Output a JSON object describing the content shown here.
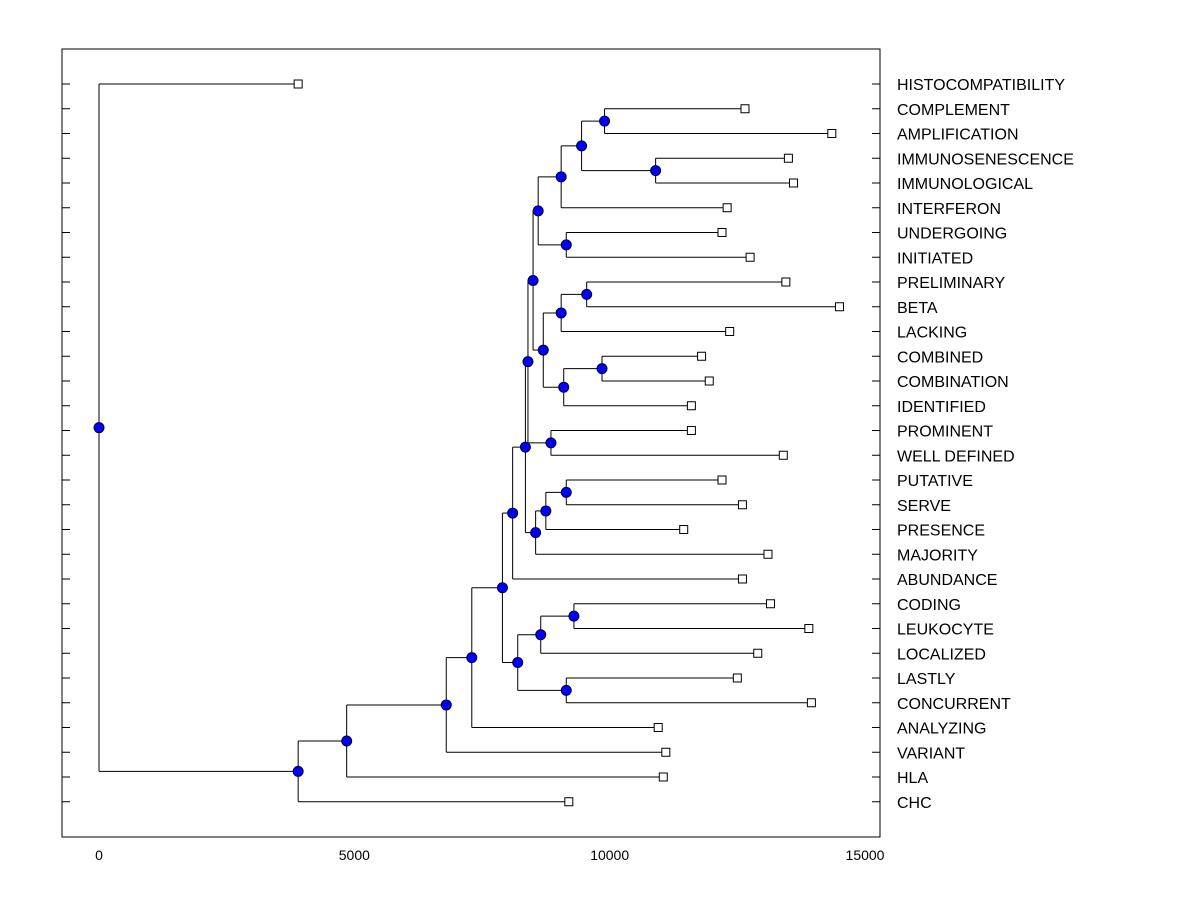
{
  "chart_data": {
    "type": "dendrogram",
    "title": "",
    "xlabel": "",
    "ylabel": "",
    "xlim": [
      -700,
      15000
    ],
    "xticks": [
      0,
      5000,
      10000,
      15000
    ],
    "tick_labels": [
      "0",
      "5000",
      "10000",
      "15000"
    ],
    "leaves": [
      {
        "name": "HISTOCOMPATIBILITY",
        "x": 3900
      },
      {
        "name": "COMPLEMENT",
        "x": 12650
      },
      {
        "name": "AMPLIFICATION",
        "x": 14350
      },
      {
        "name": "IMMUNOSENESCENCE",
        "x": 13500
      },
      {
        "name": "IMMUNOLOGICAL",
        "x": 13600
      },
      {
        "name": "INTERFERON",
        "x": 12300
      },
      {
        "name": "UNDERGOING",
        "x": 12200
      },
      {
        "name": "INITIATED",
        "x": 12750
      },
      {
        "name": "PRELIMINARY",
        "x": 13450
      },
      {
        "name": "BETA",
        "x": 14500
      },
      {
        "name": "LACKING",
        "x": 12350
      },
      {
        "name": "COMBINED",
        "x": 11800
      },
      {
        "name": "COMBINATION",
        "x": 11950
      },
      {
        "name": "IDENTIFIED",
        "x": 11600
      },
      {
        "name": "PROMINENT",
        "x": 11600
      },
      {
        "name": "WELL DEFINED",
        "x": 13400
      },
      {
        "name": "PUTATIVE",
        "x": 12200
      },
      {
        "name": "SERVE",
        "x": 12600
      },
      {
        "name": "PRESENCE",
        "x": 11450
      },
      {
        "name": "MAJORITY",
        "x": 13100
      },
      {
        "name": "ABUNDANCE",
        "x": 12600
      },
      {
        "name": "CODING",
        "x": 13150
      },
      {
        "name": "LEUKOCYTE",
        "x": 13900
      },
      {
        "name": "LOCALIZED",
        "x": 12900
      },
      {
        "name": "LASTLY",
        "x": 12500
      },
      {
        "name": "CONCURRENT",
        "x": 13950
      },
      {
        "name": "ANALYZING",
        "x": 10950
      },
      {
        "name": "VARIANT",
        "x": 11100
      },
      {
        "name": "HLA",
        "x": 11050
      },
      {
        "name": "CHC",
        "x": 9200
      }
    ],
    "nodes": [
      {
        "id": "n1",
        "x": 9900,
        "children": [
          "L1",
          "L2"
        ]
      },
      {
        "id": "n2",
        "x": 10900,
        "children": [
          "L3",
          "L4"
        ]
      },
      {
        "id": "n3",
        "x": 9450,
        "children": [
          "n1",
          "n2"
        ]
      },
      {
        "id": "n4",
        "x": 9050,
        "children": [
          "n3",
          "L5"
        ]
      },
      {
        "id": "n5",
        "x": 9150,
        "children": [
          "L6",
          "L7"
        ]
      },
      {
        "id": "n6",
        "x": 8600,
        "children": [
          "n4",
          "n5"
        ]
      },
      {
        "id": "n7",
        "x": 9550,
        "children": [
          "L8",
          "L9"
        ]
      },
      {
        "id": "n8",
        "x": 9050,
        "children": [
          "n7",
          "L10"
        ]
      },
      {
        "id": "n9",
        "x": 9850,
        "children": [
          "L11",
          "L12"
        ]
      },
      {
        "id": "n10",
        "x": 9100,
        "children": [
          "n9",
          "L13"
        ]
      },
      {
        "id": "n11",
        "x": 8700,
        "children": [
          "n8",
          "n10"
        ]
      },
      {
        "id": "n12",
        "x": 8500,
        "children": [
          "n6",
          "n11"
        ]
      },
      {
        "id": "n13",
        "x": 8400,
        "children": [
          "n12",
          "n14"
        ]
      },
      {
        "id": "n14",
        "x": 8850,
        "children": [
          "L14",
          "L15"
        ]
      },
      {
        "id": "n15",
        "x": 9150,
        "children": [
          "L16",
          "L17"
        ]
      },
      {
        "id": "n16",
        "x": 8750,
        "children": [
          "n15",
          "L18"
        ]
      },
      {
        "id": "n17",
        "x": 8550,
        "children": [
          "n16",
          "L19"
        ]
      },
      {
        "id": "n18",
        "x": 8350,
        "children": [
          "n13",
          "n17"
        ]
      },
      {
        "id": "n19",
        "x": 8100,
        "children": [
          "n18",
          "L20"
        ]
      },
      {
        "id": "n20",
        "x": 9300,
        "children": [
          "L21",
          "L22"
        ]
      },
      {
        "id": "n21",
        "x": 8650,
        "children": [
          "n20",
          "L23"
        ]
      },
      {
        "id": "n22",
        "x": 9150,
        "children": [
          "L24",
          "L25"
        ]
      },
      {
        "id": "n23",
        "x": 8200,
        "children": [
          "n21",
          "n22"
        ]
      },
      {
        "id": "n24",
        "x": 7900,
        "children": [
          "n19",
          "n23"
        ]
      },
      {
        "id": "n25",
        "x": 7300,
        "children": [
          "n24",
          "L26"
        ]
      },
      {
        "id": "n26",
        "x": 6800,
        "children": [
          "n25",
          "L27"
        ]
      },
      {
        "id": "n27",
        "x": 4850,
        "children": [
          "n26",
          "L28"
        ]
      },
      {
        "id": "n28",
        "x": 3900,
        "children": [
          "n27",
          "L29"
        ]
      },
      {
        "id": "n29",
        "x": 0,
        "children": [
          "L0",
          "n28"
        ]
      }
    ],
    "colors": {
      "node": "#0000ff",
      "leaf": "#ffffff",
      "line": "#000000"
    }
  }
}
